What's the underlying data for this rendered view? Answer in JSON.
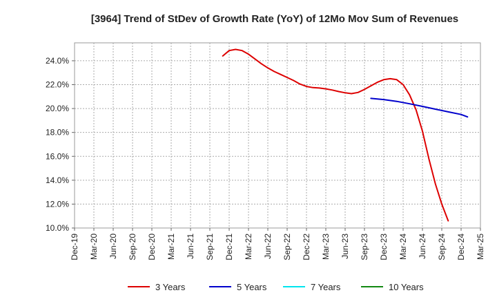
{
  "chart_data": {
    "type": "line",
    "title": "[3964]  Trend of StDev of Growth Rate (YoY) of 12Mo Mov Sum of Revenues",
    "xlabel": "",
    "ylabel": "",
    "x_ticks": [
      "Dec-19",
      "Mar-20",
      "Jun-20",
      "Sep-20",
      "Dec-20",
      "Mar-21",
      "Jun-21",
      "Sep-21",
      "Dec-21",
      "Mar-22",
      "Jun-22",
      "Sep-22",
      "Dec-22",
      "Mar-23",
      "Jun-23",
      "Sep-23",
      "Dec-23",
      "Mar-24",
      "Jun-24",
      "Sep-24",
      "Dec-24",
      "Mar-25"
    ],
    "y_ticks": [
      "10.0%",
      "12.0%",
      "14.0%",
      "16.0%",
      "18.0%",
      "20.0%",
      "22.0%",
      "24.0%"
    ],
    "y_tick_values": [
      10,
      12,
      14,
      16,
      18,
      20,
      22,
      24
    ],
    "ylim": [
      10,
      25.5
    ],
    "x_range_months": [
      0,
      63
    ],
    "grid": true,
    "legend_position": "bottom",
    "series": [
      {
        "name": "3 Years",
        "color": "#dd0000",
        "points": [
          {
            "m": 23,
            "v": 24.4
          },
          {
            "m": 24,
            "v": 24.85
          },
          {
            "m": 25,
            "v": 24.95
          },
          {
            "m": 26,
            "v": 24.85
          },
          {
            "m": 27,
            "v": 24.55
          },
          {
            "m": 28,
            "v": 24.15
          },
          {
            "m": 29,
            "v": 23.75
          },
          {
            "m": 30,
            "v": 23.4
          },
          {
            "m": 31,
            "v": 23.1
          },
          {
            "m": 32,
            "v": 22.85
          },
          {
            "m": 33,
            "v": 22.6
          },
          {
            "m": 34,
            "v": 22.35
          },
          {
            "m": 35,
            "v": 22.05
          },
          {
            "m": 36,
            "v": 21.85
          },
          {
            "m": 37,
            "v": 21.75
          },
          {
            "m": 38,
            "v": 21.72
          },
          {
            "m": 39,
            "v": 21.65
          },
          {
            "m": 40,
            "v": 21.55
          },
          {
            "m": 41,
            "v": 21.42
          },
          {
            "m": 42,
            "v": 21.32
          },
          {
            "m": 43,
            "v": 21.25
          },
          {
            "m": 44,
            "v": 21.35
          },
          {
            "m": 45,
            "v": 21.6
          },
          {
            "m": 46,
            "v": 21.9
          },
          {
            "m": 47,
            "v": 22.2
          },
          {
            "m": 48,
            "v": 22.42
          },
          {
            "m": 49,
            "v": 22.5
          },
          {
            "m": 50,
            "v": 22.42
          },
          {
            "m": 51,
            "v": 22.0
          },
          {
            "m": 52,
            "v": 21.15
          },
          {
            "m": 53,
            "v": 19.9
          },
          {
            "m": 54,
            "v": 18.1
          },
          {
            "m": 55,
            "v": 15.8
          },
          {
            "m": 56,
            "v": 13.7
          },
          {
            "m": 57,
            "v": 12.0
          },
          {
            "m": 58,
            "v": 10.6
          }
        ]
      },
      {
        "name": "5 Years",
        "color": "#0000cc",
        "points": [
          {
            "m": 46,
            "v": 20.85
          },
          {
            "m": 48,
            "v": 20.75
          },
          {
            "m": 50,
            "v": 20.6
          },
          {
            "m": 52,
            "v": 20.4
          },
          {
            "m": 54,
            "v": 20.18
          },
          {
            "m": 56,
            "v": 19.95
          },
          {
            "m": 58,
            "v": 19.72
          },
          {
            "m": 60,
            "v": 19.5
          },
          {
            "m": 61,
            "v": 19.3
          }
        ]
      },
      {
        "name": "7 Years",
        "color": "#00e5ee",
        "points": []
      },
      {
        "name": "10 Years",
        "color": "#118811",
        "points": []
      }
    ]
  }
}
